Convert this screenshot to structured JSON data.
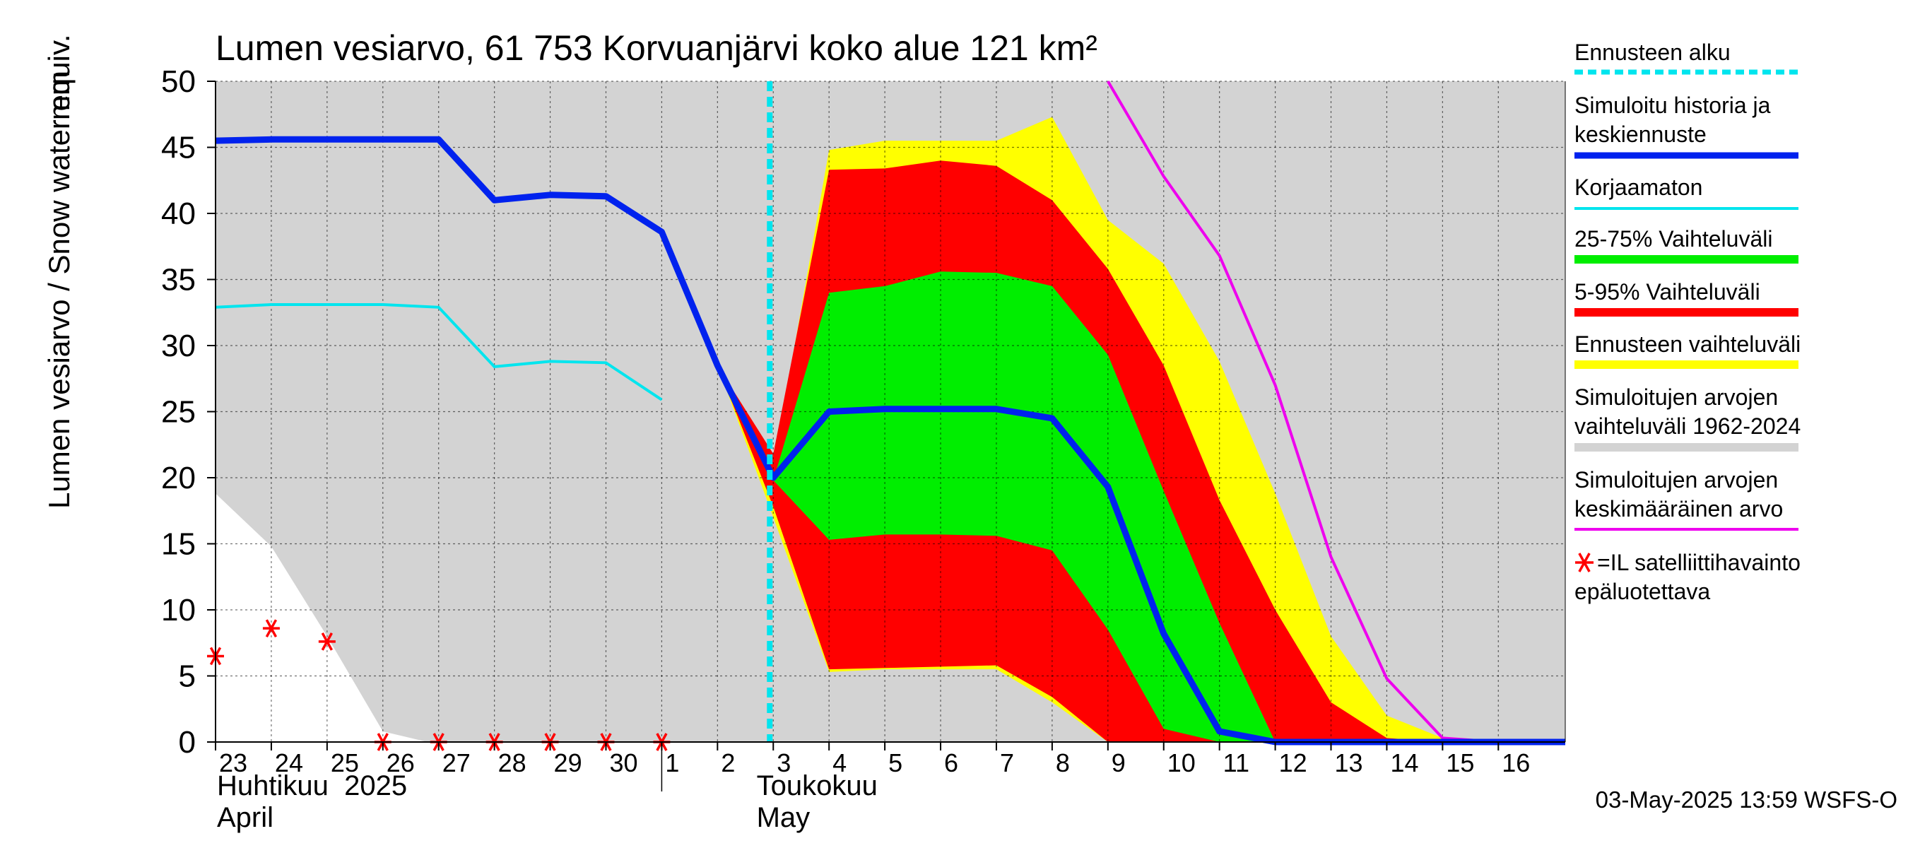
{
  "chart_data": {
    "type": "area",
    "title": "Lumen vesiarvo, 61 753 Korvuanjärvi koko alue 121 km²",
    "ylabel_fi": "Lumen vesiarvo / Snow water equiv.",
    "ylabel_unit": "mm",
    "ylim": [
      0,
      50
    ],
    "yticks": [
      0,
      5,
      10,
      15,
      20,
      25,
      30,
      35,
      40,
      45,
      50
    ],
    "xlim": [
      0,
      24.2
    ],
    "x_tick_labels": [
      "23",
      "24",
      "25",
      "26",
      "27",
      "28",
      "29",
      "30",
      "1",
      "2",
      "3",
      "4",
      "5",
      "6",
      "7",
      "8",
      "9",
      "10",
      "11",
      "12",
      "13",
      "14",
      "15",
      "16"
    ],
    "month_labels": [
      {
        "fi": "Huhtikuu  2025",
        "en": "April"
      },
      {
        "fi": "Toukokuu",
        "en": "May"
      }
    ],
    "month_boundary_x": 8,
    "forecast_start_x": 10,
    "grid": true,
    "legend_position": "right",
    "timestamp": "03-May-2025 13:59 WSFS-O",
    "colors": {
      "background": "#d3d3d3",
      "historical_range": "#ffffff",
      "forecast_range": "#ffff00",
      "p5_95": "#ff0000",
      "p25_75": "#00ee00",
      "mean_sim": "#0022ee",
      "uncorrected": "#00e5ee",
      "climate_mean": "#ee00ee",
      "satellite": "#ff0000",
      "forecast_start": "#00e5ee"
    },
    "series": [
      {
        "name": "Simuloitu historia ja keskiennuste",
        "x": [
          0,
          1,
          2,
          3,
          4,
          5,
          6,
          7,
          8,
          9,
          10,
          11,
          12,
          13,
          14,
          15,
          16,
          17,
          18,
          19,
          20,
          21,
          22,
          23,
          24.2
        ],
        "values": [
          45.5,
          45.6,
          45.6,
          45.6,
          45.6,
          41.0,
          41.4,
          41.3,
          38.6,
          28.5,
          20.0,
          25.0,
          25.2,
          25.2,
          25.2,
          24.5,
          19.3,
          8.2,
          0.8,
          0,
          0,
          0,
          0,
          0,
          0
        ]
      },
      {
        "name": "Korjaamaton",
        "x": [
          0,
          1,
          2,
          3,
          4,
          5,
          6,
          7,
          8
        ],
        "values": [
          32.9,
          33.1,
          33.1,
          33.1,
          32.9,
          28.4,
          28.8,
          28.7,
          25.9
        ]
      },
      {
        "name": "Simuloitujen arvojen keskimääräinen arvo",
        "x": [
          16,
          17,
          18,
          19,
          20,
          21,
          22,
          23,
          24.2
        ],
        "values": [
          50.0,
          42.8,
          36.8,
          27.0,
          14.0,
          4.8,
          0.3,
          0,
          0
        ]
      },
      {
        "name": "=IL satelliittihavainto epäluotettava",
        "x": [
          0,
          1,
          2,
          3,
          4,
          5,
          6,
          7,
          8
        ],
        "values": [
          6.5,
          8.6,
          7.6,
          0,
          0,
          0,
          0,
          0,
          0
        ]
      }
    ],
    "historical_range_upper": {
      "x": [
        0,
        1,
        2,
        3,
        3.8,
        24.2
      ],
      "values": [
        18.8,
        14.8,
        8.0,
        0.8,
        0,
        0
      ]
    },
    "forecast_range": {
      "x": [
        9,
        10,
        11,
        12,
        13,
        14,
        15,
        16,
        17,
        18,
        19,
        20,
        21,
        22,
        23,
        24.2
      ],
      "upper": [
        28.5,
        20.8,
        44.8,
        45.5,
        45.5,
        45.5,
        47.3,
        39.5,
        36.2,
        28.8,
        18.8,
        8.0,
        2.0,
        0.3,
        0.1,
        0.1
      ],
      "lower": [
        28.5,
        17.0,
        5.3,
        5.5,
        5.5,
        5.5,
        3.0,
        0,
        0,
        0,
        0,
        0,
        0,
        0,
        0,
        0
      ]
    },
    "range_5_95": {
      "x": [
        9,
        10,
        11,
        12,
        13,
        14,
        15,
        16,
        17,
        18,
        19,
        20,
        21,
        22,
        23,
        24.2
      ],
      "upper": [
        28.5,
        21.8,
        43.3,
        43.4,
        44.0,
        43.6,
        41.0,
        35.8,
        28.5,
        18.3,
        10.0,
        3.0,
        0.3,
        0,
        0,
        0
      ],
      "lower": [
        28.5,
        17.8,
        5.5,
        5.6,
        5.7,
        5.8,
        3.4,
        0,
        0,
        0,
        0,
        0,
        0,
        0,
        0,
        0
      ]
    },
    "range_25_75": {
      "x": [
        10,
        11,
        12,
        13,
        14,
        15,
        16,
        17,
        18,
        19,
        20,
        21,
        22,
        23,
        24.2
      ],
      "upper": [
        19.8,
        34.0,
        34.5,
        35.6,
        35.5,
        34.5,
        29.3,
        19.0,
        9.0,
        0,
        0,
        0,
        0,
        0,
        0
      ],
      "lower": [
        19.8,
        15.3,
        15.7,
        15.7,
        15.6,
        14.5,
        8.5,
        1.0,
        0,
        0,
        0,
        0,
        0,
        0,
        0
      ]
    }
  },
  "legend": [
    {
      "key": "forecast_start",
      "label": "Ennusteen alku"
    },
    {
      "key": "mean",
      "label": "Simuloitu historia ja keskiennuste"
    },
    {
      "key": "uncorrected",
      "label": "Korjaamaton"
    },
    {
      "key": "p25_75",
      "label": "25-75% Vaihteluväli"
    },
    {
      "key": "p5_95",
      "label": "5-95% Vaihteluväli"
    },
    {
      "key": "forecast_range",
      "label": "Ennusteen vaihteluväli"
    },
    {
      "key": "historical_range",
      "label": "Simuloitujen arvojen vaihteluväli 1962-2024"
    },
    {
      "key": "climate_mean",
      "label": "Simuloitujen arvojen keskimääräinen arvo"
    },
    {
      "key": "satellite",
      "label": "=IL satelliittihavainto epäluotettava"
    }
  ]
}
